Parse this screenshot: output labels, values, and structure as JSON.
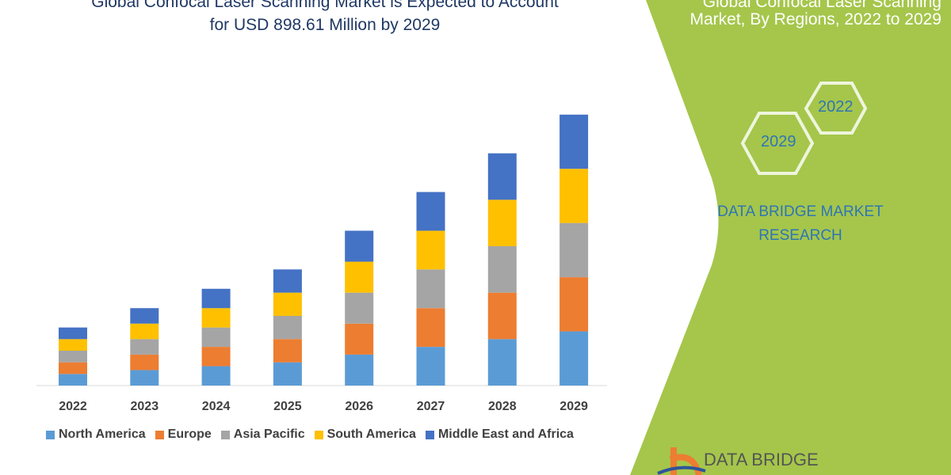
{
  "title_line1": "Global Confocal Laser Scanning Market is Expected to Account",
  "title_line2": "for USD 898.61 Million by 2029",
  "side_panel": {
    "title_line1": "Global Confocal Laser Scanning",
    "title_line2": "Market, By Regions, 2022 to 2029",
    "hex_start": "2022",
    "hex_end": "2029",
    "brand_line1": "DATA BRIDGE MARKET",
    "brand_line2": "RESEARCH",
    "logo_text": "DATA BRIDGE",
    "panel_color": "#a5c64b"
  },
  "chart_data": {
    "type": "bar",
    "stacked": true,
    "categories": [
      "2022",
      "2023",
      "2024",
      "2025",
      "2026",
      "2027",
      "2028",
      "2029"
    ],
    "series": [
      {
        "name": "North America",
        "color": "#5b9bd5",
        "values": [
          15,
          20,
          25,
          30,
          40,
          50,
          60,
          70
        ]
      },
      {
        "name": "Europe",
        "color": "#ed7d31",
        "values": [
          15,
          20,
          25,
          30,
          40,
          50,
          60,
          70
        ]
      },
      {
        "name": "Asia Pacific",
        "color": "#a5a5a5",
        "values": [
          15,
          20,
          25,
          30,
          40,
          50,
          60,
          70
        ]
      },
      {
        "name": "South America",
        "color": "#ffc000",
        "values": [
          15,
          20,
          25,
          30,
          40,
          50,
          60,
          70
        ]
      },
      {
        "name": "Middle East and Africa",
        "color": "#4472c4",
        "values": [
          15,
          20,
          25,
          30,
          40,
          50,
          60,
          70
        ]
      }
    ],
    "ylim": [
      0,
      360
    ],
    "grid": false,
    "y_axis_shown": false,
    "legend_position": "bottom"
  }
}
